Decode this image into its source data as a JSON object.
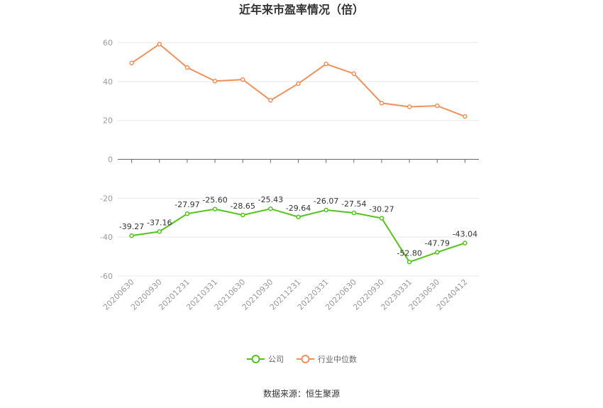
{
  "chart_data": {
    "type": "line",
    "title": "近年来市盈率情况（倍）",
    "categories": [
      "20200630",
      "20200930",
      "20201231",
      "20210331",
      "20210630",
      "20210930",
      "20211231",
      "20220331",
      "20220630",
      "20220930",
      "20230331",
      "20230630",
      "20240412"
    ],
    "series": [
      {
        "name": "公司",
        "color": "#52c41a",
        "values": [
          -39.27,
          -37.16,
          -27.97,
          -25.6,
          -28.65,
          -25.43,
          -29.64,
          -26.07,
          -27.54,
          -30.27,
          -52.8,
          -47.79,
          -43.04
        ],
        "labels": [
          "-39.27",
          "-37.16",
          "-27.97",
          "-25.60",
          "-28.65",
          "-25.43",
          "-29.64",
          "-26.07",
          "-27.54",
          "-30.27",
          "-52.80",
          "-47.79",
          "-43.04"
        ]
      },
      {
        "name": "行业中位数",
        "color": "#f0905a",
        "values": [
          49.5,
          59.2,
          47.2,
          40.2,
          41.0,
          30.3,
          38.9,
          49.0,
          44.0,
          28.9,
          27.0,
          27.5,
          22.0
        ]
      }
    ],
    "y_ticks": [
      "60",
      "40",
      "20",
      "0",
      "-20",
      "-40",
      "-60"
    ],
    "ylim": [
      -60,
      60
    ],
    "grid": true,
    "legend_position": "bottom",
    "source": "数据来源：恒生聚源"
  }
}
